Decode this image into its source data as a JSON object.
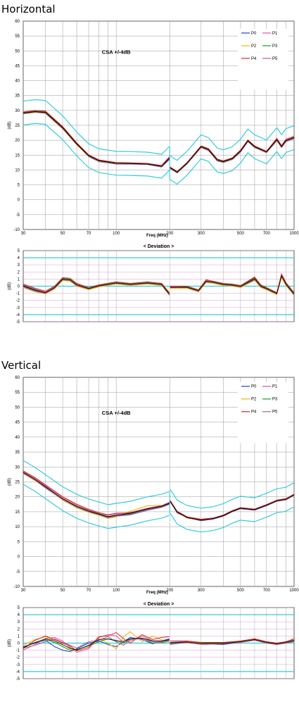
{
  "sections": [
    {
      "title": "Horizontal",
      "main": {
        "annotation": "CSA  +/-4dB",
        "xlabel": "Freq (MHz)",
        "ylabel": "(dB)",
        "yticks": [
          "60",
          "55",
          "50",
          "45",
          "40",
          "35",
          "30",
          "25",
          "20",
          "15",
          "10",
          "5",
          "0",
          "-5",
          "-10"
        ],
        "xticks": [
          "30",
          "50",
          "70",
          "100",
          "200",
          "300",
          "500",
          "700",
          "1000"
        ]
      },
      "deviation": {
        "title": "< Deviation >",
        "ylabel": "(dB)",
        "yticks": [
          "5",
          "4",
          "3",
          "2",
          "1",
          "0",
          "-1",
          "-2",
          "-3",
          "-4",
          "-5"
        ]
      }
    },
    {
      "title": "Vertical",
      "main": {
        "annotation": "CSA  +/-4dB",
        "xlabel": "Freq (MHz)",
        "ylabel": "(dB)",
        "yticks": [
          "60",
          "55",
          "50",
          "45",
          "40",
          "35",
          "30",
          "25",
          "20",
          "15",
          "10",
          "5",
          "0",
          "-5",
          "-10"
        ],
        "xticks": [
          "30",
          "50",
          "70",
          "100",
          "200",
          "300",
          "500",
          "700",
          "1000"
        ]
      },
      "deviation": {
        "title": "< Deviation >",
        "ylabel": "(dB)",
        "yticks": [
          "5",
          "4",
          "3",
          "2",
          "1",
          "0",
          "-1",
          "-2",
          "-3",
          "-4",
          "-5"
        ]
      }
    }
  ],
  "legend": [
    {
      "name": "P0",
      "color": "#1f3fd0"
    },
    {
      "name": "P1",
      "color": "#e8509a"
    },
    {
      "name": "P2",
      "color": "#e8b800"
    },
    {
      "name": "P3",
      "color": "#1a9a2a"
    },
    {
      "name": "P4",
      "color": "#e02020"
    },
    {
      "name": "P5",
      "color": "#b06090"
    }
  ],
  "colors": {
    "limit_line": "#33ccdd",
    "mean_line": "#000000",
    "grid": "#999999",
    "deviation_ref": "#33ccdd",
    "deviation_minor": "#e0b0e0"
  },
  "chart_data": [
    {
      "type": "line",
      "panel": "Horizontal",
      "xscale": "log",
      "xlim": [
        30,
        1000
      ],
      "ylim": [
        -10,
        60
      ],
      "tolerance_db": 4,
      "x": [
        30,
        35,
        40,
        50,
        60,
        70,
        80,
        100,
        120,
        150,
        180,
        199,
        201,
        220,
        250,
        300,
        330,
        370,
        400,
        450,
        500,
        550,
        600,
        700,
        800,
        850,
        900,
        1000
      ],
      "series": [
        {
          "name": "P0",
          "values": [
            29.0,
            29.5,
            29.2,
            24.0,
            18.5,
            14.5,
            12.8,
            12.0,
            12.0,
            11.8,
            11.0,
            13.5,
            10.5,
            9.0,
            12.0,
            17.5,
            16.5,
            13.0,
            12.5,
            13.5,
            16.0,
            19.5,
            17.5,
            15.8,
            19.8,
            17.5,
            19.5,
            20.5
          ]
        },
        {
          "name": "P1",
          "values": [
            29.2,
            29.6,
            29.4,
            24.2,
            18.8,
            14.9,
            13.3,
            12.4,
            12.2,
            12.1,
            11.4,
            14.2,
            10.9,
            9.4,
            12.4,
            18.0,
            17.1,
            13.6,
            13.0,
            14.0,
            16.6,
            20.0,
            18.0,
            16.2,
            20.5,
            18.1,
            20.2,
            21.2
          ]
        },
        {
          "name": "P2",
          "values": [
            28.8,
            29.3,
            29.0,
            23.8,
            18.4,
            14.6,
            12.9,
            12.1,
            12.1,
            11.9,
            11.2,
            13.8,
            10.6,
            9.1,
            12.1,
            17.6,
            16.6,
            13.1,
            12.6,
            13.6,
            16.1,
            19.6,
            17.6,
            15.9,
            19.9,
            17.6,
            19.6,
            20.6
          ]
        },
        {
          "name": "P3",
          "values": [
            29.3,
            29.9,
            29.6,
            24.5,
            19.0,
            15.0,
            13.2,
            12.3,
            12.3,
            12.0,
            11.3,
            13.9,
            10.8,
            9.3,
            12.3,
            17.9,
            16.9,
            13.4,
            12.9,
            13.9,
            16.4,
            19.9,
            17.9,
            16.1,
            20.2,
            17.9,
            19.9,
            20.9
          ]
        },
        {
          "name": "P4",
          "values": [
            29.5,
            30.0,
            29.8,
            24.6,
            19.1,
            15.1,
            13.4,
            12.5,
            12.4,
            12.2,
            11.5,
            14.4,
            11.0,
            9.5,
            12.5,
            18.1,
            17.2,
            13.7,
            13.1,
            14.1,
            16.7,
            20.1,
            18.1,
            16.3,
            20.6,
            18.2,
            20.3,
            21.3
          ]
        },
        {
          "name": "P5",
          "values": [
            28.9,
            29.4,
            29.1,
            23.9,
            18.6,
            14.7,
            13.0,
            12.2,
            12.1,
            11.9,
            11.1,
            13.7,
            10.7,
            9.2,
            12.2,
            17.7,
            16.7,
            13.2,
            12.7,
            13.7,
            16.2,
            19.7,
            17.7,
            16.0,
            20.0,
            17.7,
            19.7,
            20.7
          ]
        }
      ]
    },
    {
      "type": "line",
      "panel": "Horizontal - Deviation",
      "xscale": "log",
      "xlim": [
        30,
        1000
      ],
      "ylim": [
        -5,
        5
      ],
      "reference_lines": [
        4,
        0,
        -4
      ],
      "x": [
        30,
        35,
        40,
        45,
        50,
        55,
        60,
        70,
        80,
        100,
        120,
        150,
        180,
        199,
        201,
        250,
        290,
        320,
        350,
        400,
        450,
        500,
        600,
        650,
        700,
        800,
        850,
        900,
        1000
      ],
      "series": [
        {
          "name": "P0",
          "values": [
            0.0,
            -0.6,
            -1.0,
            -0.3,
            0.9,
            0.8,
            0.1,
            -0.4,
            0.0,
            0.4,
            0.2,
            0.4,
            0.2,
            -1.2,
            -0.2,
            -0.2,
            -0.7,
            0.6,
            0.5,
            0.2,
            0.1,
            -0.1,
            0.9,
            -0.1,
            -0.4,
            -1.1,
            1.3,
            0.2,
            -1.2
          ]
        },
        {
          "name": "P1",
          "values": [
            0.2,
            -0.4,
            -0.8,
            -0.1,
            1.0,
            0.9,
            0.3,
            -0.3,
            0.1,
            0.5,
            0.3,
            0.5,
            0.3,
            -1.1,
            -0.1,
            -0.1,
            -0.6,
            0.8,
            0.6,
            0.3,
            0.2,
            0.0,
            1.1,
            0.0,
            -0.3,
            -1.0,
            1.5,
            0.3,
            -1.1
          ]
        },
        {
          "name": "P2",
          "values": [
            -0.2,
            -0.8,
            -1.1,
            -0.4,
            0.8,
            0.7,
            0.0,
            -0.5,
            -0.1,
            0.3,
            0.1,
            0.3,
            0.1,
            -1.3,
            -0.3,
            -0.3,
            -0.8,
            0.5,
            0.4,
            0.1,
            0.0,
            -0.2,
            0.8,
            -0.2,
            -0.5,
            -1.2,
            1.2,
            0.1,
            -1.3
          ]
        },
        {
          "name": "P3",
          "values": [
            0.1,
            -0.5,
            -0.9,
            -0.2,
            1.1,
            1.0,
            0.2,
            -0.3,
            0.1,
            0.5,
            0.3,
            0.5,
            0.3,
            -1.0,
            -0.2,
            -0.1,
            -0.6,
            0.7,
            0.6,
            0.3,
            0.2,
            0.0,
            1.2,
            0.1,
            -0.3,
            -1.0,
            1.6,
            0.4,
            -1.0
          ]
        },
        {
          "name": "P4",
          "values": [
            0.3,
            -0.3,
            -0.7,
            0.0,
            1.2,
            1.1,
            0.4,
            -0.2,
            0.2,
            0.6,
            0.4,
            0.6,
            0.4,
            -0.9,
            0.0,
            0.0,
            -0.5,
            0.9,
            0.7,
            0.4,
            0.3,
            0.1,
            1.3,
            0.2,
            -0.2,
            -0.9,
            1.7,
            0.5,
            -0.9
          ]
        },
        {
          "name": "P5",
          "values": [
            -0.1,
            -0.7,
            -1.0,
            -0.3,
            0.9,
            0.8,
            0.1,
            -0.4,
            0.0,
            0.4,
            0.2,
            0.4,
            0.2,
            -1.2,
            -0.2,
            -0.2,
            -0.7,
            0.6,
            0.5,
            0.2,
            0.1,
            -0.1,
            1.0,
            -0.1,
            -0.4,
            -1.1,
            1.4,
            0.2,
            -1.2
          ]
        }
      ]
    },
    {
      "type": "line",
      "panel": "Vertical",
      "xscale": "log",
      "xlim": [
        30,
        1000
      ],
      "ylim": [
        -10,
        60
      ],
      "tolerance_db": 4,
      "x": [
        30,
        35,
        40,
        50,
        60,
        70,
        80,
        90,
        100,
        120,
        150,
        180,
        199,
        201,
        220,
        250,
        300,
        350,
        400,
        450,
        500,
        600,
        700,
        800,
        900,
        1000
      ],
      "series": [
        {
          "name": "P0",
          "values": [
            28.0,
            25.5,
            23.0,
            19.0,
            16.5,
            15.0,
            14.0,
            13.0,
            13.5,
            14.0,
            15.5,
            16.5,
            17.5,
            18.5,
            15.0,
            13.0,
            12.0,
            12.5,
            13.5,
            15.0,
            16.0,
            15.5,
            17.0,
            18.5,
            19.0,
            20.5
          ]
        },
        {
          "name": "P1",
          "values": [
            28.5,
            26.2,
            23.8,
            19.8,
            17.2,
            15.6,
            14.6,
            13.8,
            14.2,
            14.8,
            16.2,
            17.1,
            18.2,
            18.6,
            14.5,
            13.2,
            12.4,
            12.8,
            13.8,
            15.3,
            16.3,
            15.8,
            17.3,
            18.8,
            19.3,
            20.8
          ]
        },
        {
          "name": "P2",
          "values": [
            27.8,
            25.4,
            23.2,
            18.9,
            16.3,
            14.8,
            13.8,
            12.8,
            13.3,
            15.2,
            17.0,
            17.2,
            17.6,
            18.3,
            14.9,
            12.9,
            12.1,
            12.6,
            13.6,
            15.1,
            16.1,
            15.6,
            17.1,
            18.6,
            19.1,
            20.6
          ]
        },
        {
          "name": "P3",
          "values": [
            28.2,
            25.8,
            23.4,
            19.3,
            16.8,
            15.3,
            14.3,
            13.4,
            13.8,
            14.3,
            15.8,
            16.9,
            17.8,
            18.4,
            14.8,
            13.1,
            12.2,
            12.7,
            13.7,
            15.2,
            16.2,
            15.7,
            17.2,
            18.7,
            19.2,
            20.7
          ]
        },
        {
          "name": "P4",
          "values": [
            28.7,
            26.4,
            24.0,
            20.0,
            17.5,
            15.8,
            14.7,
            14.0,
            14.5,
            14.6,
            15.9,
            16.8,
            18.0,
            18.8,
            15.2,
            13.3,
            12.5,
            12.9,
            13.9,
            15.4,
            16.4,
            15.9,
            17.4,
            18.9,
            19.4,
            20.9
          ]
        },
        {
          "name": "P5",
          "values": [
            27.9,
            25.6,
            23.1,
            19.1,
            16.6,
            15.1,
            14.1,
            13.2,
            13.6,
            14.1,
            15.6,
            16.6,
            17.6,
            18.4,
            15.1,
            13.0,
            12.1,
            12.6,
            13.6,
            15.1,
            16.1,
            15.6,
            17.1,
            18.6,
            19.1,
            20.6
          ]
        }
      ]
    },
    {
      "type": "line",
      "panel": "Vertical - Deviation",
      "xscale": "log",
      "xlim": [
        30,
        1000
      ],
      "ylim": [
        -5,
        5
      ],
      "reference_lines": [
        4,
        0,
        -4
      ],
      "x": [
        30,
        35,
        40,
        45,
        50,
        55,
        60,
        70,
        80,
        90,
        100,
        110,
        120,
        140,
        160,
        180,
        199,
        201,
        250,
        300,
        400,
        500,
        600,
        700,
        800,
        900,
        1000
      ],
      "series": [
        {
          "name": "P0",
          "values": [
            -0.5,
            0.0,
            0.4,
            -0.5,
            -1.0,
            -1.2,
            -0.8,
            0.0,
            0.3,
            -0.2,
            -0.5,
            0.2,
            0.8,
            0.5,
            -0.1,
            0.3,
            0.6,
            0.1,
            0.2,
            -0.1,
            -0.2,
            0.1,
            0.5,
            0.0,
            -0.2,
            0.0,
            0.3
          ]
        },
        {
          "name": "P1",
          "values": [
            -1.0,
            -0.2,
            0.6,
            0.8,
            0.3,
            -0.6,
            -1.3,
            -0.8,
            0.8,
            1.2,
            1.0,
            0.1,
            0.3,
            1.0,
            0.3,
            0.2,
            0.4,
            -0.1,
            0.2,
            0.0,
            0.0,
            0.2,
            0.4,
            0.1,
            -0.1,
            0.1,
            0.4
          ]
        },
        {
          "name": "P2",
          "values": [
            -0.3,
            0.5,
            0.9,
            0.3,
            -0.2,
            -0.8,
            -1.0,
            -0.3,
            0.6,
            0.0,
            -0.8,
            0.9,
            1.6,
            0.2,
            1.0,
            0.5,
            0.1,
            0.0,
            0.0,
            -0.1,
            0.0,
            0.3,
            0.6,
            0.2,
            0.0,
            0.2,
            0.5
          ]
        },
        {
          "name": "P3",
          "values": [
            -0.6,
            0.1,
            0.5,
            0.1,
            -0.5,
            -1.0,
            -0.9,
            -0.4,
            0.2,
            0.6,
            0.4,
            0.0,
            0.6,
            0.7,
            0.0,
            0.1,
            0.5,
            0.0,
            0.1,
            0.0,
            0.0,
            0.2,
            0.5,
            0.1,
            -0.1,
            0.1,
            0.4
          ]
        },
        {
          "name": "P4",
          "values": [
            -0.8,
            0.4,
            1.0,
            0.5,
            0.0,
            -0.4,
            -1.1,
            -0.6,
            0.9,
            1.0,
            1.5,
            0.6,
            0.0,
            1.2,
            0.5,
            0.8,
            0.9,
            0.3,
            0.3,
            0.1,
            0.1,
            0.3,
            0.6,
            0.2,
            0.0,
            0.2,
            0.6
          ]
        },
        {
          "name": "P5",
          "values": [
            -0.7,
            -0.3,
            0.2,
            0.6,
            0.1,
            -0.3,
            -0.7,
            0.2,
            0.4,
            0.9,
            0.2,
            -0.3,
            0.5,
            0.6,
            0.2,
            0.0,
            0.3,
            -0.2,
            0.1,
            -0.2,
            -0.1,
            0.1,
            0.4,
            0.0,
            -0.2,
            0.0,
            0.2
          ]
        }
      ]
    }
  ]
}
